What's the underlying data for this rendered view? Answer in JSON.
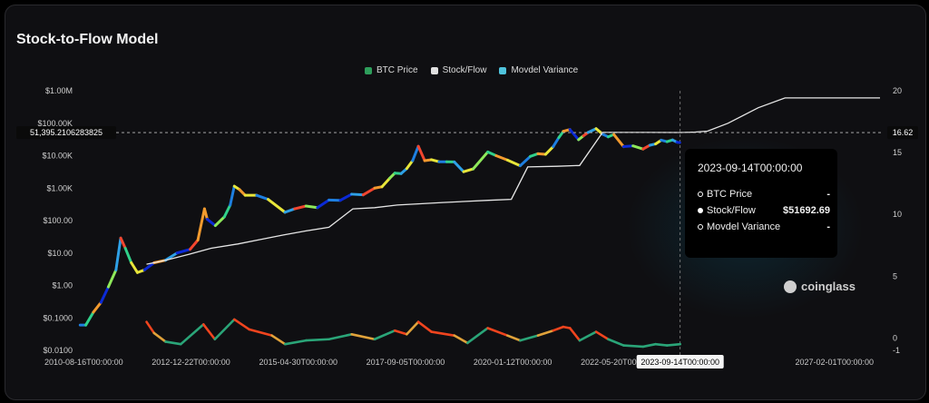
{
  "title": "Stock-to-Flow Model",
  "legend": [
    {
      "label": "BTC Price",
      "color": "#2e9e5b"
    },
    {
      "label": "Stock/Flow",
      "color": "#e0e0e0"
    },
    {
      "label": "Movdel Variance",
      "color": "#4fc3dc"
    }
  ],
  "crosshair": {
    "y_label": "51,395.2106283825",
    "right_label": "16.62",
    "x_label": "2023-09-14T00:00:00"
  },
  "tooltip": {
    "time": "2023-09-14T00:00:00",
    "rows": [
      {
        "label": "BTC Price",
        "value": "-",
        "filled": false
      },
      {
        "label": "Stock/Flow",
        "value": "$51692.69",
        "filled": true
      },
      {
        "label": "Movdel Variance",
        "value": "-",
        "filled": false
      }
    ]
  },
  "watermark": "coinglass",
  "chart_data": {
    "type": "line",
    "title": "Stock-to-Flow Model",
    "y_scale": "log",
    "y_ticks": [
      "$1.00M",
      "$100.00K",
      "$10.00K",
      "$1.00K",
      "$100.00",
      "$10.00",
      "$1.00",
      "$0.1000",
      "$0.0100"
    ],
    "y_range": [
      0.01,
      1000000
    ],
    "y2_ticks": [
      "20",
      "15",
      "10",
      "5",
      "0",
      "-1"
    ],
    "y2_range": [
      -1,
      20
    ],
    "x_ticks": [
      "2010-08-16T00:00:00",
      "2012-12-22T00:00:00",
      "2015-04-30T00:00:00",
      "2017-09-05T00:00:00",
      "2020-01-12T00:00:00",
      "2022-05-20T00:00:00",
      "2023-09-14T00:00:00",
      "2027-02-01T00:00:00"
    ],
    "x_range": [
      "2010-07-01",
      "2028-03-01"
    ],
    "series": [
      {
        "name": "BTC Price",
        "axis": "left",
        "x": [
          "2010-07-18",
          "2010-09-01",
          "2010-11-01",
          "2011-01-01",
          "2011-03-01",
          "2011-05-01",
          "2011-06-08",
          "2011-07-15",
          "2011-09-01",
          "2011-10-20",
          "2011-12-15",
          "2012-03-01",
          "2012-06-01",
          "2012-09-01",
          "2012-12-15",
          "2013-02-15",
          "2013-04-09",
          "2013-05-01",
          "2013-07-05",
          "2013-09-15",
          "2013-11-01",
          "2013-12-04",
          "2014-01-15",
          "2014-03-01",
          "2014-06-01",
          "2014-09-01",
          "2015-01-14",
          "2015-04-01",
          "2015-07-01",
          "2015-10-01",
          "2016-01-01",
          "2016-04-01",
          "2016-07-01",
          "2016-10-01",
          "2017-01-01",
          "2017-03-01",
          "2017-05-01",
          "2017-06-12",
          "2017-08-01",
          "2017-09-15",
          "2017-11-01",
          "2017-12-17",
          "2018-02-06",
          "2018-04-01",
          "2018-06-01",
          "2018-08-01",
          "2018-10-01",
          "2018-12-15",
          "2019-03-01",
          "2019-06-26",
          "2019-09-01",
          "2019-12-01",
          "2020-03-12",
          "2020-06-01",
          "2020-08-01",
          "2020-10-01",
          "2020-12-01",
          "2021-01-15",
          "2021-02-20",
          "2021-04-14",
          "2021-06-22",
          "2021-08-01",
          "2021-09-07",
          "2021-11-10",
          "2022-01-01",
          "2022-02-15",
          "2022-04-01",
          "2022-06-18",
          "2022-09-01",
          "2022-11-21",
          "2023-01-15",
          "2023-03-01",
          "2023-04-15",
          "2023-06-01",
          "2023-07-15",
          "2023-08-20",
          "2023-09-11"
        ],
        "values": [
          0.06,
          0.06,
          0.15,
          0.3,
          0.9,
          3,
          29,
          14,
          5,
          2.5,
          3,
          5,
          6,
          10,
          13,
          25,
          230,
          110,
          70,
          130,
          300,
          1150,
          900,
          600,
          600,
          450,
          180,
          230,
          280,
          250,
          430,
          420,
          650,
          620,
          1000,
          1100,
          2000,
          2900,
          2800,
          4000,
          7000,
          19500,
          7000,
          7500,
          6500,
          6500,
          6400,
          3200,
          3900,
          13000,
          10000,
          7300,
          4900,
          9500,
          11500,
          11000,
          19000,
          36000,
          56000,
          64000,
          31000,
          41000,
          52000,
          68000,
          46000,
          38000,
          45000,
          19000,
          20000,
          16000,
          21000,
          23000,
          30000,
          27000,
          30500,
          26000,
          25200
        ]
      },
      {
        "name": "Stock/Flow",
        "axis": "left",
        "x": [
          "2012-01-01",
          "2012-06-01",
          "2012-12-01",
          "2013-06-01",
          "2014-01-01",
          "2014-07-01",
          "2015-01-01",
          "2015-07-01",
          "2016-01-01",
          "2016-07-10",
          "2017-01-01",
          "2017-07-01",
          "2018-01-01",
          "2018-07-01",
          "2019-01-01",
          "2019-07-01",
          "2020-01-01",
          "2020-05-11",
          "2021-01-01",
          "2021-07-01",
          "2022-01-01",
          "2022-07-01",
          "2023-01-01",
          "2023-09-14",
          "2024-01-01",
          "2024-04-20",
          "2024-10-01",
          "2025-06-01",
          "2026-01-01",
          "2027-01-01",
          "2028-02-01"
        ],
        "values": [
          4.5,
          6,
          9,
          14,
          19,
          26,
          36,
          48,
          62,
          230,
          250,
          300,
          330,
          360,
          390,
          420,
          450,
          4500,
          4700,
          5000,
          52000,
          52000,
          52000,
          51692.69,
          53000,
          57000,
          100000,
          300000,
          600000,
          600000,
          600000
        ]
      },
      {
        "name": "Movdel Variance",
        "axis": "right",
        "x": [
          "2012-01-01",
          "2012-03-01",
          "2012-06-01",
          "2012-10-01",
          "2013-04-01",
          "2013-07-01",
          "2013-12-04",
          "2014-04-01",
          "2014-10-01",
          "2015-01-15",
          "2015-07-01",
          "2016-01-01",
          "2016-07-01",
          "2017-01-01",
          "2017-06-12",
          "2017-09-15",
          "2017-12-17",
          "2018-04-01",
          "2018-10-01",
          "2019-01-15",
          "2019-06-26",
          "2019-12-01",
          "2020-03-12",
          "2020-08-01",
          "2020-12-01",
          "2021-02-20",
          "2021-04-14",
          "2021-07-01",
          "2021-11-10",
          "2022-02-15",
          "2022-06-18",
          "2022-11-21",
          "2023-03-01",
          "2023-06-01",
          "2023-09-14"
        ],
        "values": [
          1.3,
          0.4,
          -0.3,
          -0.5,
          1.1,
          -0.1,
          1.5,
          0.7,
          0.2,
          -0.5,
          -0.2,
          -0.1,
          0.3,
          -0.1,
          0.6,
          0.3,
          1.3,
          0.5,
          0.2,
          -0.4,
          0.8,
          0.2,
          -0.2,
          0.2,
          0.6,
          0.9,
          0.8,
          -0.2,
          0.5,
          -0.1,
          -0.6,
          -0.7,
          -0.5,
          -0.6,
          -0.5
        ]
      }
    ]
  }
}
